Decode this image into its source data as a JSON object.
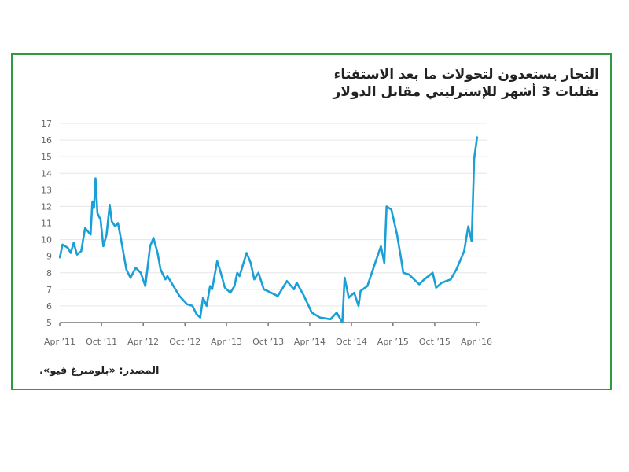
{
  "title_line1": "التجار يستعدون لتحولات ما بعد الاستفتاء",
  "title_line2": "تقلبات 3 أشهر للإسترليني مقابل الدولار",
  "source": "المصدر: «بلومبرغ فيو».",
  "colors": {
    "line": "#1a9fd6",
    "frame": "#2f9a3e",
    "grid": "#e6e6e6"
  },
  "chart_data": {
    "type": "line",
    "title": "التجار يستعدون لتحولات ما بعد الاستفتاء",
    "subtitle": "تقلبات 3 أشهر للإسترليني مقابل الدولار",
    "xlabel": "",
    "ylabel": "",
    "ylim": [
      5,
      17
    ],
    "xlim": [
      "2011-04-01",
      "2016-04-01"
    ],
    "grid": "horizontal",
    "yticks": [
      "5",
      "6",
      "7",
      "8",
      "9",
      "10",
      "11",
      "12",
      "13",
      "14",
      "15",
      "16",
      "17"
    ],
    "xticks": [
      {
        "date": "2011-04-01",
        "label": "Apr ’11"
      },
      {
        "date": "2011-10-01",
        "label": "Oct ’11"
      },
      {
        "date": "2012-04-01",
        "label": "Apr ’12"
      },
      {
        "date": "2012-10-01",
        "label": "Oct ’12"
      },
      {
        "date": "2013-04-01",
        "label": "Apr ’13"
      },
      {
        "date": "2013-10-01",
        "label": "Oct ’13"
      },
      {
        "date": "2014-04-01",
        "label": "Apr ’14"
      },
      {
        "date": "2014-10-01",
        "label": "Oct ’14"
      },
      {
        "date": "2015-04-01",
        "label": "Apr ’15"
      },
      {
        "date": "2015-10-01",
        "label": "Oct ’15"
      },
      {
        "date": "2016-04-01",
        "label": "Apr ’16"
      }
    ],
    "series": [
      {
        "x": [
          "2011-04-01",
          "2011-04-13",
          "2011-05-07",
          "2011-05-19",
          "2011-06-01",
          "2011-06-16",
          "2011-07-04",
          "2011-07-21",
          "2011-08-14",
          "2011-08-22",
          "2011-08-29",
          "2011-09-05",
          "2011-09-13",
          "2011-09-27",
          "2011-10-09",
          "2011-10-23",
          "2011-11-06",
          "2011-11-15",
          "2011-11-30",
          "2011-12-12",
          "2011-12-26",
          "2012-01-18",
          "2012-02-05",
          "2012-02-28",
          "2012-03-21",
          "2012-04-10",
          "2012-04-19",
          "2012-05-01",
          "2012-05-16",
          "2012-06-03",
          "2012-06-16",
          "2012-07-07",
          "2012-07-16",
          "2012-08-07",
          "2012-09-07",
          "2012-10-10",
          "2012-11-03",
          "2012-11-21",
          "2012-12-07",
          "2012-12-19",
          "2013-01-04",
          "2013-01-19",
          "2013-01-28",
          "2013-02-19",
          "2013-03-07",
          "2013-03-25",
          "2013-04-18",
          "2013-05-06",
          "2013-05-18",
          "2013-05-28",
          "2013-06-28",
          "2013-07-16",
          "2013-08-01",
          "2013-08-19",
          "2013-09-12",
          "2013-09-28",
          "2013-11-12",
          "2013-12-22",
          "2014-01-22",
          "2014-02-03",
          "2014-03-07",
          "2014-04-10",
          "2014-05-16",
          "2014-07-01",
          "2014-07-28",
          "2014-08-22",
          "2014-09-01",
          "2014-09-19",
          "2014-10-13",
          "2014-11-01",
          "2014-11-10",
          "2014-12-10",
          "2015-01-13",
          "2015-02-07",
          "2015-02-22",
          "2015-03-04",
          "2015-03-25",
          "2015-04-19",
          "2015-05-07",
          "2015-05-16",
          "2015-06-10",
          "2015-07-25",
          "2015-08-16",
          "2015-09-22",
          "2015-10-07",
          "2015-11-01",
          "2015-12-10",
          "2016-01-04",
          "2016-02-07",
          "2016-02-25",
          "2016-03-11",
          "2016-03-22",
          "2016-04-04"
        ],
        "values": [
          8.9,
          9.7,
          9.5,
          9.2,
          9.8,
          9.1,
          9.3,
          10.7,
          10.3,
          12.3,
          11.9,
          13.7,
          11.6,
          11.2,
          9.6,
          10.3,
          12.1,
          11.1,
          10.8,
          11.0,
          10.0,
          8.2,
          7.7,
          8.3,
          8.0,
          7.2,
          8.2,
          9.6,
          10.1,
          9.2,
          8.2,
          7.6,
          7.8,
          7.3,
          6.6,
          6.1,
          6.0,
          5.5,
          5.3,
          6.5,
          6.0,
          7.2,
          7.0,
          8.7,
          8.0,
          7.1,
          6.8,
          7.2,
          8.0,
          7.8,
          9.2,
          8.6,
          7.6,
          8.0,
          7.0,
          6.9,
          6.6,
          7.5,
          7.0,
          7.4,
          6.6,
          5.6,
          5.3,
          5.2,
          5.6,
          5.0,
          7.7,
          6.5,
          6.8,
          6.0,
          6.9,
          7.2,
          8.6,
          9.6,
          8.6,
          12.0,
          11.8,
          10.3,
          8.8,
          8.0,
          7.9,
          7.3,
          7.6,
          8.0,
          7.1,
          7.4,
          7.6,
          8.2,
          9.3,
          10.8,
          9.9,
          14.9,
          16.2
        ]
      }
    ]
  }
}
